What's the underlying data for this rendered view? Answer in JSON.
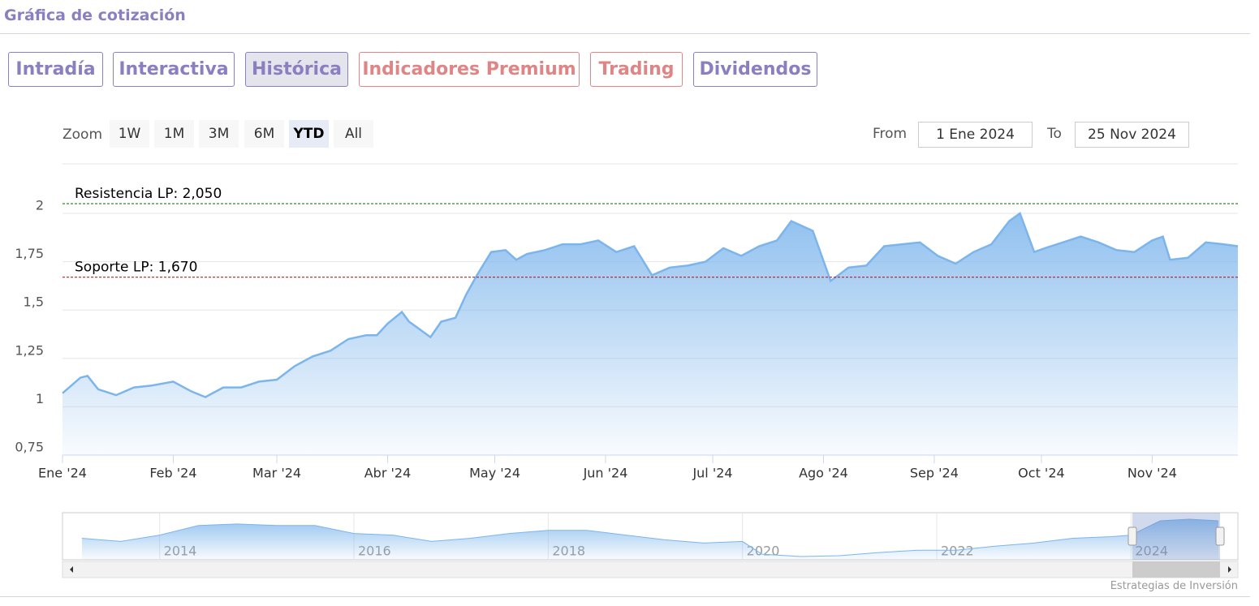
{
  "header": {
    "title": "Gráfica de cotización"
  },
  "tabs": [
    "Intradía",
    "Interactiva",
    "Histórica",
    "Indicadores Premium",
    "Trading",
    "Dividendos"
  ],
  "zoom": {
    "label": "Zoom",
    "buttons": [
      "1W",
      "1M",
      "3M",
      "6M",
      "YTD",
      "All"
    ]
  },
  "range": {
    "from_label": "From",
    "from": "1 Ene 2024",
    "to_label": "To",
    "to": "25 Nov 2024"
  },
  "chart_data": {
    "type": "area",
    "color": "#7cb5ec",
    "x": [
      0,
      5,
      7,
      10,
      15,
      20,
      25,
      31,
      36,
      40,
      45,
      50,
      55,
      60,
      65,
      70,
      75,
      80,
      85,
      88,
      91,
      95,
      97,
      100,
      103,
      106,
      110,
      113,
      116,
      120,
      124,
      127,
      130,
      135,
      140,
      145,
      150,
      155,
      160,
      165,
      170,
      175,
      180,
      185,
      190,
      195,
      200,
      204,
      210,
      215,
      220,
      225,
      230,
      235,
      240,
      245,
      250,
      255,
      260,
      265,
      268,
      272,
      275,
      280,
      285,
      290,
      295,
      300,
      305,
      308,
      310,
      315,
      320,
      325,
      329
    ],
    "values": [
      1.07,
      1.15,
      1.16,
      1.09,
      1.06,
      1.1,
      1.11,
      1.13,
      1.08,
      1.05,
      1.1,
      1.1,
      1.13,
      1.14,
      1.21,
      1.26,
      1.29,
      1.35,
      1.37,
      1.37,
      1.43,
      1.49,
      1.44,
      1.4,
      1.36,
      1.44,
      1.46,
      1.58,
      1.68,
      1.8,
      1.81,
      1.76,
      1.79,
      1.81,
      1.84,
      1.84,
      1.86,
      1.8,
      1.83,
      1.68,
      1.72,
      1.73,
      1.75,
      1.82,
      1.78,
      1.83,
      1.86,
      1.96,
      1.91,
      1.65,
      1.72,
      1.73,
      1.83,
      1.84,
      1.85,
      1.78,
      1.74,
      1.8,
      1.84,
      1.96,
      2.0,
      1.8,
      1.82,
      1.85,
      1.88,
      1.85,
      1.81,
      1.8,
      1.86,
      1.88,
      1.76,
      1.77,
      1.85,
      1.84,
      1.83
    ],
    "xlim": [
      0,
      329
    ],
    "xticks": [
      {
        "value": 0,
        "label": "Ene '24"
      },
      {
        "value": 31,
        "label": "Feb '24"
      },
      {
        "value": 60,
        "label": "Mar '24"
      },
      {
        "value": 91,
        "label": "Abr '24"
      },
      {
        "value": 121,
        "label": "May '24"
      },
      {
        "value": 152,
        "label": "Jun '24"
      },
      {
        "value": 182,
        "label": "Jul '24"
      },
      {
        "value": 213,
        "label": "Ago '24"
      },
      {
        "value": 244,
        "label": "Sep '24"
      },
      {
        "value": 274,
        "label": "Oct '24"
      },
      {
        "value": 305,
        "label": "Nov '24"
      }
    ],
    "ylim": [
      0.75,
      2.25
    ],
    "yticks": [
      {
        "value": 0.75,
        "label": "0,75"
      },
      1,
      {
        "value": 1.25,
        "label": "1,25"
      },
      {
        "value": 1.5,
        "label": "1,5"
      },
      {
        "value": 1.75,
        "label": "1,75"
      },
      2
    ],
    "grid": true,
    "annotations": [
      {
        "label": "Resistencia LP: 2,050",
        "value": 2.05,
        "color": "#1a7a1a"
      },
      {
        "label": "Soporte LP: 1,670",
        "value": 1.67,
        "color": "#b22222"
      }
    ]
  },
  "navigator": {
    "color": "#7cb5ec",
    "x": [
      2013.2,
      2013.6,
      2014.0,
      2014.4,
      2014.8,
      2015.2,
      2015.6,
      2016.0,
      2016.4,
      2016.8,
      2017.2,
      2017.6,
      2018.0,
      2018.4,
      2018.8,
      2019.2,
      2019.6,
      2020.0,
      2020.2,
      2020.6,
      2021.0,
      2021.4,
      2021.8,
      2022.2,
      2022.6,
      2023.0,
      2023.4,
      2023.8,
      2024.0,
      2024.3,
      2024.6,
      2024.9
    ],
    "values": [
      0.93,
      0.81,
      1.05,
      1.41,
      1.47,
      1.41,
      1.41,
      1.11,
      1.05,
      0.81,
      0.93,
      1.11,
      1.23,
      1.23,
      1.05,
      0.87,
      0.75,
      0.81,
      0.33,
      0.24,
      0.27,
      0.39,
      0.48,
      0.48,
      0.63,
      0.75,
      0.93,
      0.99,
      1.05,
      1.59,
      1.65,
      1.59
    ],
    "xlim": [
      2013,
      2025.1
    ],
    "xticks": [
      2014,
      2016,
      2018,
      2020,
      2022,
      2024
    ]
  },
  "credit": "Estrategias de Inversión"
}
